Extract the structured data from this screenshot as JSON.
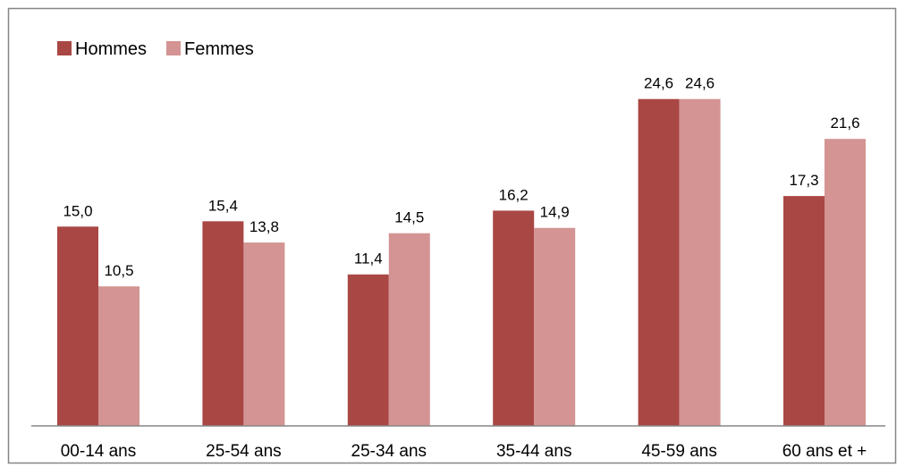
{
  "chart_data": {
    "type": "bar",
    "categories": [
      "00-14 ans",
      "25-54 ans",
      "25-34 ans",
      "35-44 ans",
      "45-59 ans",
      "60 ans et +"
    ],
    "series": [
      {
        "name": "Hommes",
        "color": "#A94744",
        "values": [
          15.0,
          15.4,
          11.4,
          16.2,
          24.6,
          17.3
        ],
        "labels": [
          "15,0",
          "15,4",
          "11,4",
          "16,2",
          "24,6",
          "17,3"
        ]
      },
      {
        "name": "Femmes",
        "color": "#D39493",
        "values": [
          10.5,
          13.8,
          14.5,
          14.9,
          24.6,
          21.6
        ],
        "labels": [
          "10,5",
          "13,8",
          "14,5",
          "14,9",
          "24,6",
          "21,6"
        ]
      }
    ],
    "title": "",
    "xlabel": "",
    "ylabel": "",
    "ylim": [
      0,
      28
    ],
    "grid": false,
    "legend": "top-left",
    "border_color": "#868686",
    "axis_color": "#868686"
  }
}
